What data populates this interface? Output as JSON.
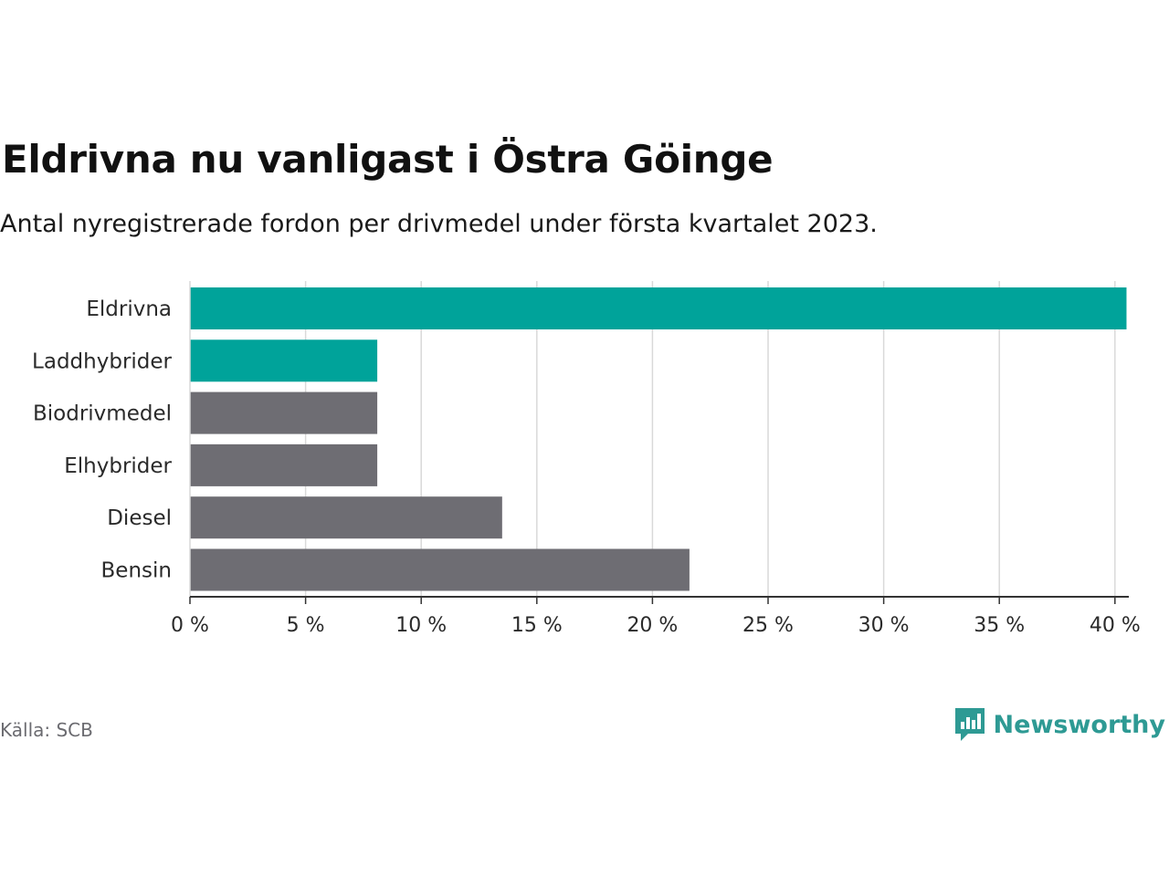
{
  "header": {
    "title": "Eldrivna nu vanligast i Östra Göinge",
    "subtitle": "Antal nyregistrerade fordon per drivmedel under första kvartalet 2023."
  },
  "chart_data": {
    "type": "bar",
    "orientation": "horizontal",
    "categories": [
      "Eldrivna",
      "Laddhybrider",
      "Biodrivmedel",
      "Elhybrider",
      "Diesel",
      "Bensin"
    ],
    "values": [
      40.5,
      8.1,
      8.1,
      8.1,
      13.5,
      21.6
    ],
    "highlight": [
      true,
      true,
      false,
      false,
      false,
      false
    ],
    "xlim": [
      0,
      40.6
    ],
    "xticks": [
      0,
      5,
      10,
      15,
      20,
      25,
      30,
      35,
      40
    ],
    "tick_suffix": " %",
    "grid": true,
    "colors": {
      "highlight": "#00a39a",
      "default": "#6e6d73",
      "grid": "#d9d9d9",
      "axis": "#333333"
    }
  },
  "footer": {
    "source": "Källa: SCB",
    "brand": "Newsworthy",
    "brand_icon": "newsworthy-logo-icon",
    "brand_color": "#2e9a94"
  }
}
